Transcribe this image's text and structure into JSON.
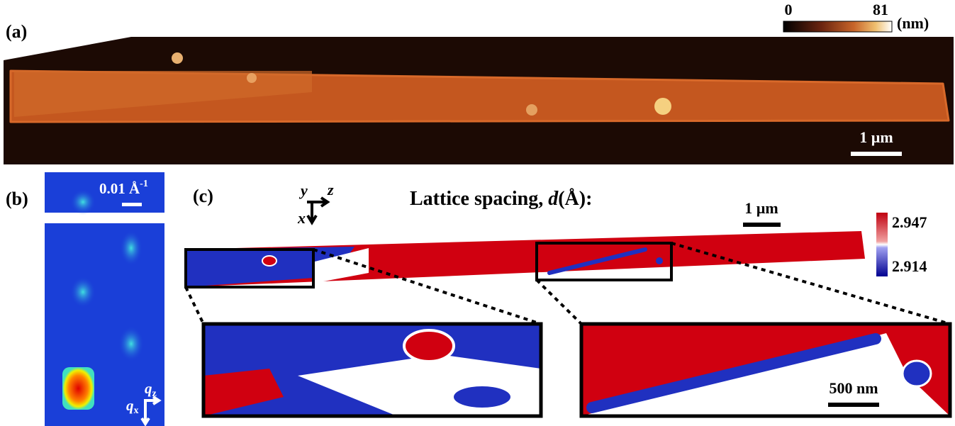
{
  "panel_a": {
    "label": "(a)",
    "colorbar": {
      "min": "0",
      "max": "81",
      "unit": "(nm)"
    },
    "scale_bar": "1 µm"
  },
  "panel_b": {
    "label": "(b)",
    "scale_bar": {
      "text": "0.01 Å",
      "sup": "-1"
    },
    "axes": {
      "qz": {
        "symbol": "q",
        "sub": "z"
      },
      "qx": {
        "symbol": "q",
        "sub": "x"
      }
    }
  },
  "panel_c": {
    "label": "(c)",
    "axes": {
      "y": "y",
      "z": "z",
      "x": "x"
    },
    "title": {
      "prefix": "Lattice spacing, ",
      "symbol": "d",
      "suffix": "(Å):"
    },
    "scale_bar": "1 µm",
    "colorbar": {
      "max": "2.947",
      "min": "2.914"
    },
    "inset_scale_bar": "500 nm"
  }
}
